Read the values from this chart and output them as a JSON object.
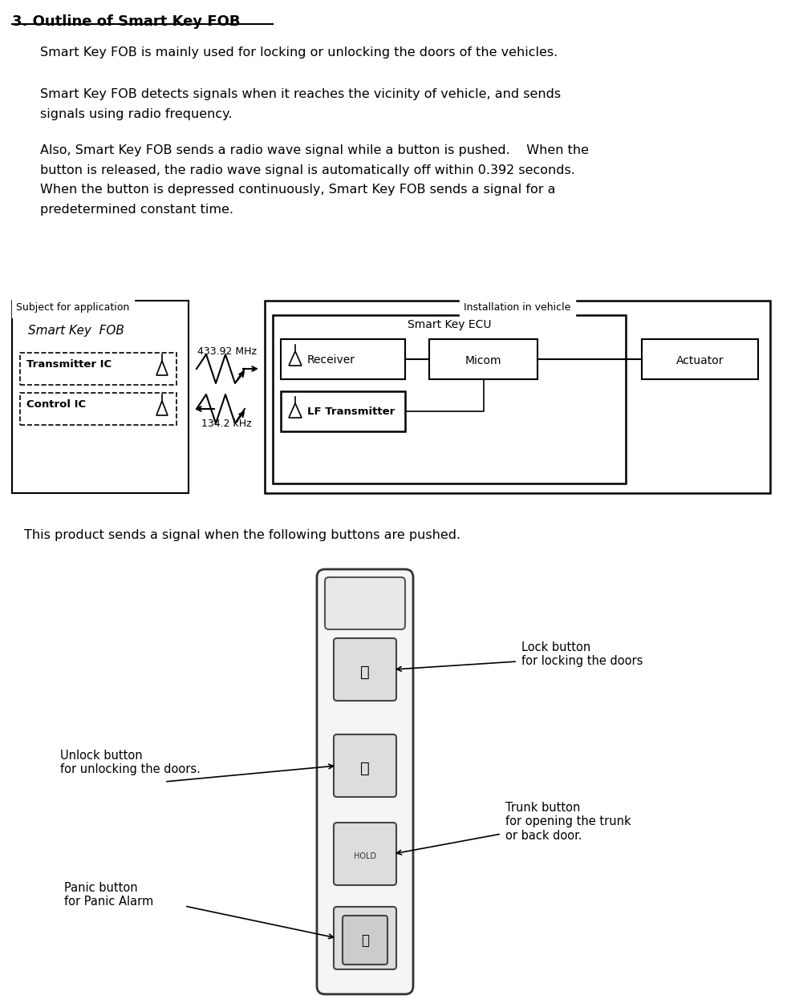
{
  "title": "3. Outline of Smart Key FOB",
  "bg_color": "#ffffff",
  "text_color": "#000000",
  "para1": "Smart Key FOB is mainly used for locking or unlocking the doors of the vehicles.",
  "para2": "Smart Key FOB detects signals when it reaches the vicinity of vehicle, and sends\nsignals using radio frequency.",
  "para3": "Also, Smart Key FOB sends a radio wave signal while a button is pushed.    When the\nbutton is released, the radio wave signal is automatically off within 0.392 seconds.\nWhen the button is depressed continuously, Smart Key FOB sends a signal for a\npredetermined constant time.",
  "diagram_subject_label": "Subject for application",
  "diagram_install_label": "Installation in vehicle",
  "diagram_fob_label": "Smart Key  FOB",
  "diagram_transmitter": "Transmitter IC",
  "diagram_control": "Control IC",
  "diagram_ecu_label": "Smart Key ECU",
  "diagram_receiver": "Receiver",
  "diagram_micom": "Micom",
  "diagram_actuator": "Actuator",
  "diagram_lf": "LF Transmitter",
  "diagram_freq1": "433.92 MHz",
  "diagram_freq2": "134.2 kHz",
  "bottom_text": "This product sends a signal when the following buttons are pushed.",
  "label_lock": "Lock button\nfor locking the doors",
  "label_unlock": "Unlock button\nfor unlocking the doors.",
  "label_trunk": "Trunk button\nfor opening the trunk\nor back door.",
  "label_panic": "Panic button\nfor Panic Alarm"
}
